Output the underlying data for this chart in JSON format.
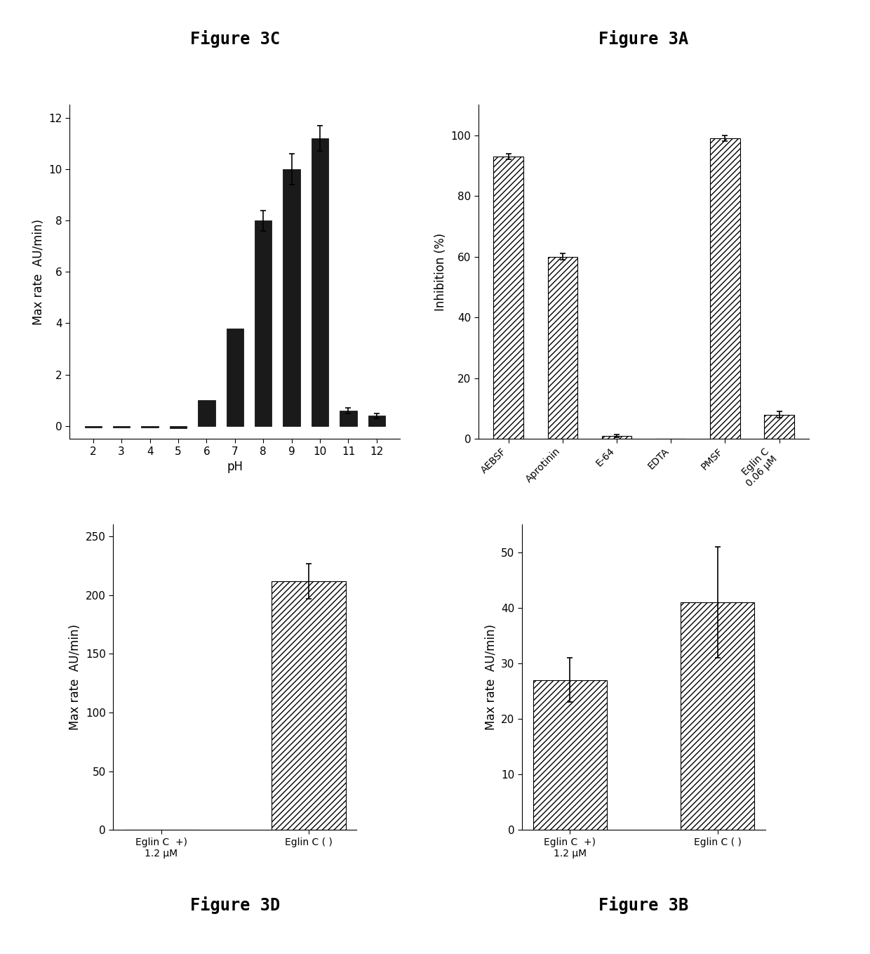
{
  "fig3C": {
    "title": "Figure 3C",
    "xlabel": "pH",
    "ylabel": "Max rate  AU/min)",
    "categories": [
      2,
      3,
      4,
      5,
      6,
      7,
      8,
      9,
      10,
      11,
      12
    ],
    "values": [
      -0.05,
      -0.05,
      -0.05,
      -0.08,
      1.0,
      3.8,
      8.0,
      10.0,
      11.2,
      0.6,
      0.4
    ],
    "errors": [
      0,
      0,
      0,
      0,
      0,
      0,
      0.4,
      0.6,
      0.5,
      0.1,
      0.1
    ],
    "ylim": [
      -0.5,
      12.5
    ],
    "yticks": [
      0,
      2,
      4,
      6,
      8,
      10,
      12
    ],
    "bar_color": "#1a1a1a"
  },
  "fig3A": {
    "title": "Figure 3A",
    "xlabel": "",
    "ylabel": "Inhibition (%)",
    "categories": [
      "AEBSF",
      "Aprotinin",
      "E-64",
      "EDTA",
      "PMSF",
      "Eglin C\n0.06 μM"
    ],
    "values": [
      93,
      60,
      1,
      0,
      99,
      8
    ],
    "errors": [
      1,
      1,
      0.5,
      0,
      1,
      1
    ],
    "ylim": [
      0,
      110
    ],
    "yticks": [
      0,
      20,
      40,
      60,
      80,
      100
    ],
    "hatch": "////"
  },
  "fig3D": {
    "title": "Figure 3D",
    "xlabel": "",
    "ylabel": "Max rate  AU/min)",
    "categories": [
      "Eglin C  +)\n1.2 μM",
      "Eglin C ( )"
    ],
    "values": [
      0,
      212
    ],
    "errors": [
      0,
      15
    ],
    "ylim": [
      0,
      260
    ],
    "yticks": [
      0,
      50,
      100,
      150,
      200,
      250
    ],
    "hatch": "////"
  },
  "fig3B": {
    "title": "Figure 3B",
    "xlabel": "",
    "ylabel": "Max rate  AU/min)",
    "categories": [
      "Eglin C  +)\n1.2 μM",
      "Eglin C ( )"
    ],
    "values": [
      27,
      41
    ],
    "errors": [
      4,
      10
    ],
    "ylim": [
      0,
      55
    ],
    "yticks": [
      0,
      10,
      20,
      30,
      40,
      50
    ],
    "hatch": "////"
  },
  "background_color": "#ffffff",
  "title_fontsize": 17,
  "label_fontsize": 12,
  "tick_fontsize": 11
}
